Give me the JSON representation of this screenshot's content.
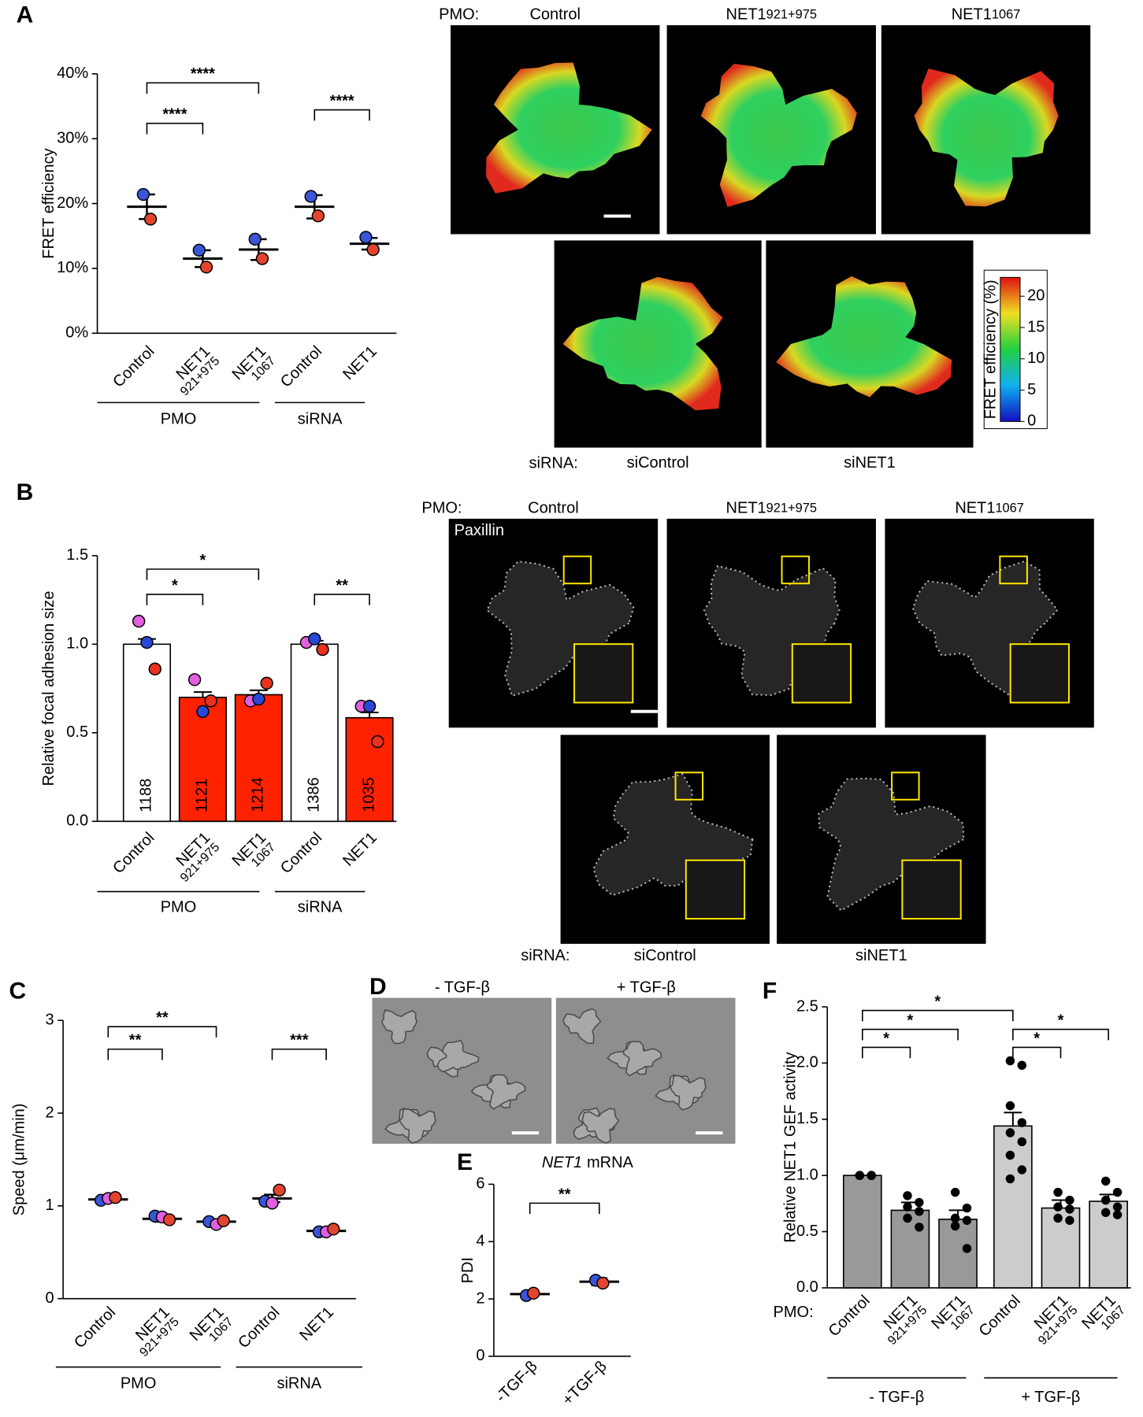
{
  "chart_data": [
    {
      "type": "dot",
      "panel": "A",
      "ylabel": "FRET efficiency",
      "categories": [
        "Control",
        "NET1",
        "NET1",
        "Control",
        "NET1"
      ],
      "category_sublabels": [
        null,
        "921+975",
        "1067",
        null,
        null
      ],
      "groups": [
        "PMO",
        "siRNA"
      ],
      "ylim": [
        0,
        40
      ],
      "yticks": [
        {
          "value": 0,
          "label": "0%"
        },
        {
          "value": 10,
          "label": "10%"
        },
        {
          "value": 20,
          "label": "20%"
        },
        {
          "value": 30,
          "label": "30%"
        },
        {
          "value": 40,
          "label": "40%"
        }
      ],
      "means": [
        19.5,
        11.5,
        12.9,
        19.5,
        13.8
      ],
      "sem": [
        1.9,
        1.3,
        1.6,
        1.8,
        0.9
      ],
      "replicates": [
        {
          "color": "#3a55d8",
          "values": [
            21.4,
            12.8,
            14.5,
            21.1,
            14.8
          ]
        },
        {
          "color": "#e2452e",
          "values": [
            17.6,
            10.2,
            11.5,
            18.1,
            12.9
          ]
        }
      ],
      "annotations": [
        "****",
        "****",
        "****"
      ]
    },
    {
      "type": "bar",
      "panel": "B",
      "ylabel": "Relative focal adhesion size",
      "categories": [
        "Control",
        "NET1",
        "NET1",
        "Control",
        "NET1"
      ],
      "category_sublabels": [
        null,
        "921+975",
        "1067",
        null,
        null
      ],
      "groups": [
        "PMO",
        "siRNA"
      ],
      "ylim": [
        0,
        1.5
      ],
      "yticks": [
        {
          "value": 0,
          "label": "0.0"
        },
        0.5,
        {
          "value": 1,
          "label": "1.0"
        },
        1.5
      ],
      "values": [
        1.0,
        0.7,
        0.715,
        1.0,
        0.585
      ],
      "sem": [
        0.03,
        0.03,
        0.025,
        0.02,
        0.03
      ],
      "colors": [
        "#ffffff",
        "#ff2200",
        "#ff2200",
        "#ffffff",
        "#ff2200"
      ],
      "n": [
        1188,
        1121,
        1214,
        1386,
        1035
      ],
      "replicates": [
        {
          "color": "#e060e0",
          "values": [
            1.13,
            0.8,
            0.68,
            1.01,
            0.65
          ]
        },
        {
          "color": "#2a48d6",
          "values": [
            1.01,
            0.62,
            0.69,
            1.03,
            0.65
          ]
        },
        {
          "color": "#e8321e",
          "values": [
            0.86,
            0.68,
            0.78,
            0.97,
            0.45
          ]
        }
      ],
      "annotations": [
        "*",
        "*",
        "**"
      ]
    },
    {
      "type": "dot",
      "panel": "C",
      "ylabel": "Speed (μm/min)",
      "categories": [
        "Control",
        "NET1",
        "NET1",
        "Control",
        "NET1"
      ],
      "category_sublabels": [
        null,
        "921+975",
        "1067",
        null,
        null
      ],
      "groups": [
        "PMO",
        "siRNA"
      ],
      "ylim": [
        0,
        3
      ],
      "yticks": [
        0,
        1,
        2,
        3
      ],
      "means": [
        1.07,
        0.86,
        0.83,
        1.08,
        0.73
      ],
      "sem": [
        0.03,
        0.03,
        0.02,
        0.04,
        0.02
      ],
      "replicates": [
        {
          "color": "#3a55d8",
          "values": [
            1.06,
            0.89,
            0.83,
            1.05,
            0.72
          ]
        },
        {
          "color": "#e060e0",
          "values": [
            1.08,
            0.88,
            0.8,
            1.03,
            0.72
          ]
        },
        {
          "color": "#e2452e",
          "values": [
            1.09,
            0.85,
            0.84,
            1.17,
            0.75
          ]
        }
      ],
      "annotations": [
        "**",
        "**",
        "***"
      ]
    },
    {
      "type": "dot",
      "panel": "E",
      "title_italic": "NET1",
      "title": "mRNA",
      "ylabel": "PDI",
      "categories": [
        "-TGF-β",
        "+TGF-β"
      ],
      "ylim": [
        0,
        6
      ],
      "yticks": [
        0,
        2,
        4,
        6
      ],
      "means": [
        2.17,
        2.6
      ],
      "sem": [
        0.08,
        0.12
      ],
      "replicates": [
        {
          "color": "#3a55d8",
          "values": [
            2.12,
            2.65
          ]
        },
        {
          "color": "#e2452e",
          "values": [
            2.2,
            2.55
          ]
        }
      ],
      "annotations": [
        "**"
      ]
    },
    {
      "type": "bar",
      "panel": "F",
      "ylabel": "Relative NET1 GEF activity",
      "x_prefix": "PMO:",
      "categories": [
        "Control",
        "NET1",
        "NET1",
        "Control",
        "NET1",
        "NET1"
      ],
      "category_sublabels": [
        null,
        "921+975",
        "1067",
        null,
        "921+975",
        "1067"
      ],
      "groups": [
        "- TGF-β",
        "+ TGF-β"
      ],
      "ylim": [
        0,
        2.5
      ],
      "yticks": [
        {
          "value": 0,
          "label": "0.0"
        },
        0.5,
        {
          "value": 1,
          "label": "1.0"
        },
        1.5,
        {
          "value": 2,
          "label": "2.0"
        },
        2.5
      ],
      "values": [
        1.0,
        0.69,
        0.61,
        1.44,
        0.71,
        0.77
      ],
      "sem": [
        0,
        0.07,
        0.08,
        0.12,
        0.07,
        0.06
      ],
      "colors": [
        "#999999",
        "#999999",
        "#999999",
        "#cccccc",
        "#cccccc",
        "#cccccc"
      ],
      "points": [
        [
          1,
          1,
          1,
          1,
          1,
          1
        ],
        [
          0.82,
          0.76,
          0.72,
          0.68,
          0.62,
          0.54
        ],
        [
          0.85,
          0.71,
          0.62,
          0.6,
          0.55,
          0.35
        ],
        [
          2.02,
          1.98,
          1.62,
          1.47,
          1.38,
          1.3,
          1.18,
          1.05,
          0.97
        ],
        [
          0.85,
          0.78,
          0.72,
          0.7,
          0.62,
          0.6
        ],
        [
          0.95,
          0.85,
          0.78,
          0.72,
          0.67,
          0.65
        ]
      ],
      "annotations": [
        "*",
        "*",
        "*",
        "*",
        "*"
      ]
    }
  ],
  "figure": {
    "A_images": {
      "top_prefix": "PMO:",
      "top": [
        "Control",
        "NET1",
        "NET1"
      ],
      "top_sub": [
        null,
        "921+975",
        "1067"
      ],
      "bottom_prefix": "siRNA:",
      "bottom": [
        "siControl",
        "siNET1"
      ]
    },
    "colorbar": {
      "label": "FRET efficiency (%)",
      "lim": [
        0,
        23
      ],
      "ticks": [
        0,
        5,
        10,
        15,
        20
      ]
    },
    "B_images": {
      "top_prefix": "PMO:",
      "top": [
        "Control",
        "NET1",
        "NET1"
      ],
      "top_sub": [
        null,
        "921+975",
        "1067"
      ],
      "inset_label": "Paxillin",
      "bottom_prefix": "siRNA:",
      "bottom": [
        "siControl",
        "siNET1"
      ]
    },
    "D": {
      "panel": "D",
      "images": [
        "- TGF-β",
        "+ TGF-β"
      ]
    }
  }
}
